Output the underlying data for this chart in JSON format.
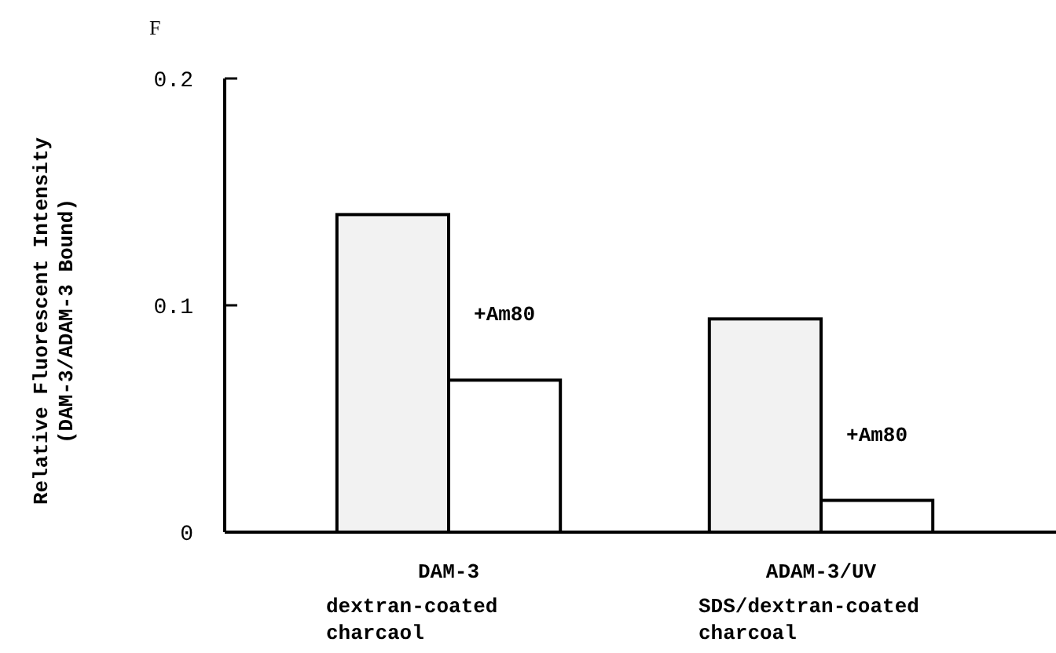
{
  "chart_data": {
    "type": "bar",
    "ylabel": "Relative Fluorescent Intensity\n(DAM-3/ADAM-3 Bound)",
    "annotations": [
      "F"
    ],
    "categories": [
      "DAM-3\ndextran-coated\ncharcaol",
      "ADAM-3/UV\nSDS/dextran-coated\ncharcoal"
    ],
    "series": [
      {
        "color": "#f2f2f2",
        "values": [
          0.14,
          0.094
        ]
      },
      {
        "name": "+Am80",
        "color": "#ffffff",
        "values": [
          0.067,
          0.014
        ]
      }
    ],
    "ylim": [
      0,
      0.2
    ],
    "yticks": [
      0,
      0.1,
      0.2
    ],
    "grid": false
  }
}
